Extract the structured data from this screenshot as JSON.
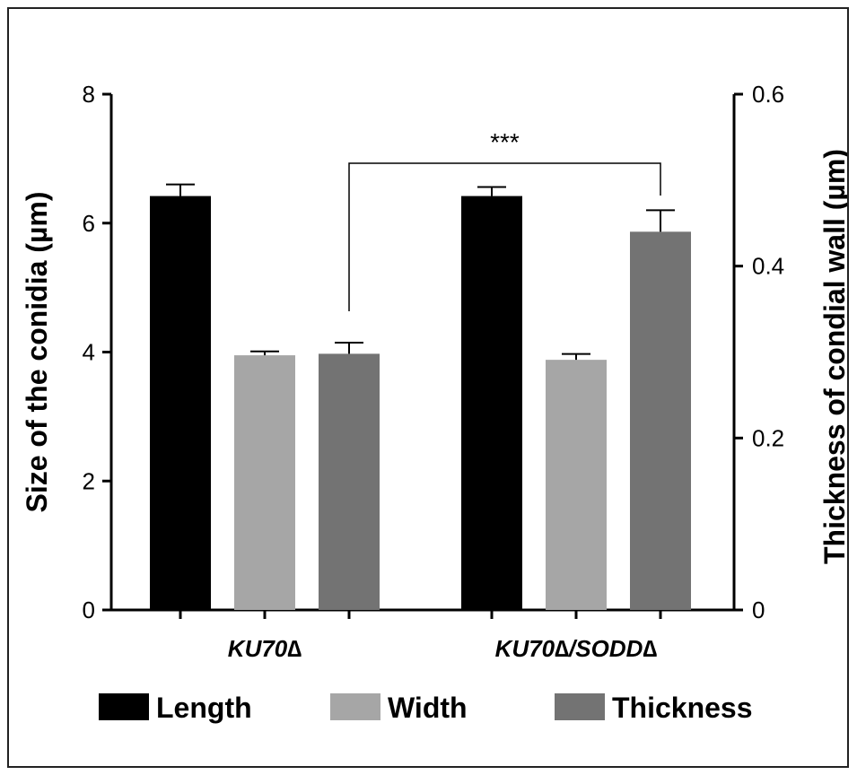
{
  "chart_data": {
    "type": "bar",
    "categories": [
      "KU70∆",
      "KU70∆/SODD∆"
    ],
    "series": [
      {
        "name": "Length",
        "axis": "left",
        "values": [
          6.42,
          6.42
        ],
        "errors": [
          0.18,
          0.14
        ],
        "color": "#000000"
      },
      {
        "name": "Width",
        "axis": "left",
        "values": [
          3.95,
          3.88
        ],
        "errors": [
          0.06,
          0.09
        ],
        "color": "#a6a6a6"
      },
      {
        "name": "Thickness",
        "axis": "right",
        "values": [
          0.298,
          0.44
        ],
        "errors": [
          0.013,
          0.025
        ],
        "color": "#737373"
      }
    ],
    "ylabel": "Size of the conidia (µm)",
    "y2label": "Thickness of condial wall (µm)",
    "ylim": [
      0,
      8
    ],
    "y2lim": [
      0,
      0.6
    ],
    "yticks": [
      "0",
      "2",
      "4",
      "6",
      "8"
    ],
    "y2ticks": [
      "0",
      "0.2",
      "0.4",
      "0.6"
    ],
    "legend_position": "bottom",
    "annotation": {
      "text": "***",
      "from_category": 0,
      "to_category": 1,
      "series": "Thickness"
    },
    "grid": false
  }
}
